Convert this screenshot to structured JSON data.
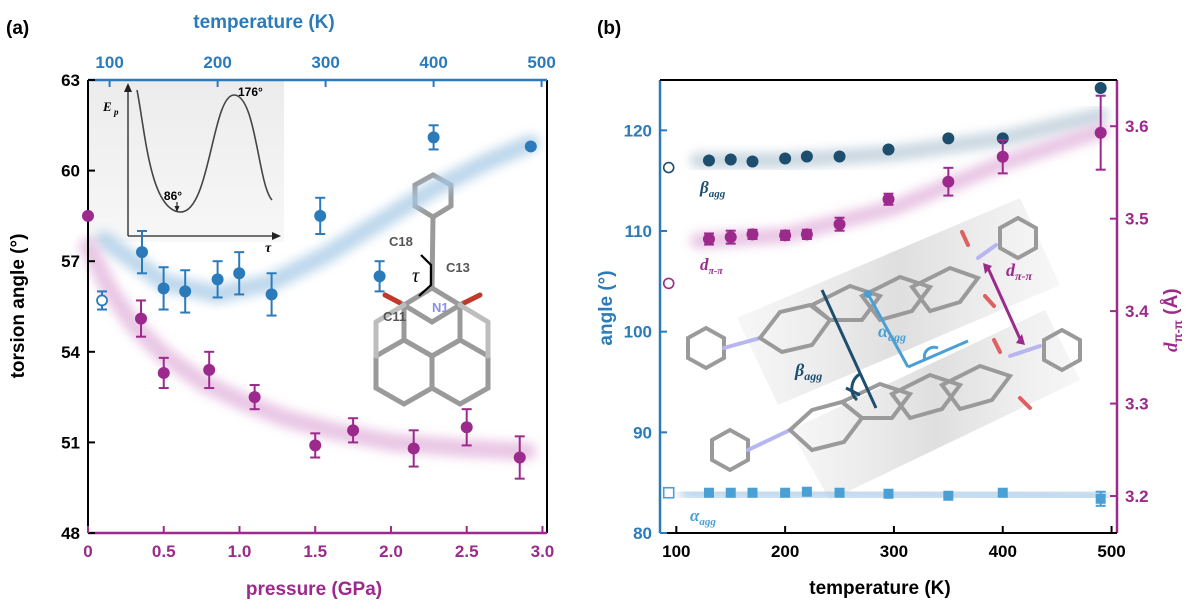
{
  "colors": {
    "blue": "#2b7bba",
    "magenta": "#9c2a8c",
    "navy": "#1d4e6e",
    "sky": "#4a9fd5"
  },
  "chart_data": [
    {
      "panel_label": "(a)",
      "type": "scatter",
      "xlabel_bottom": "pressure (GPa)",
      "xlabel_top": "temperature (K)",
      "ylabel": "torsion angle (°)",
      "xlim_bottom": [
        0,
        3.0
      ],
      "xlim_top": [
        80,
        505
      ],
      "ylim": [
        48,
        63
      ],
      "xticks_bottom": [
        "0",
        "0.5",
        "1.0",
        "1.5",
        "2.0",
        "2.5",
        "3.0"
      ],
      "xticks_top": [
        "100",
        "200",
        "300",
        "400",
        "500"
      ],
      "yticks": [
        "48",
        "51",
        "54",
        "57",
        "60",
        "63"
      ],
      "series": [
        {
          "axis": "top-temperature",
          "color": "#2b7bba",
          "marker": "circle",
          "points": [
            {
              "x": 130,
              "y": 57.3,
              "err": 0.7
            },
            {
              "x": 150,
              "y": 56.1,
              "err": 0.7
            },
            {
              "x": 170,
              "y": 56.0,
              "err": 0.7
            },
            {
              "x": 200,
              "y": 56.4,
              "err": 0.6
            },
            {
              "x": 220,
              "y": 56.6,
              "err": 0.7
            },
            {
              "x": 250,
              "y": 55.9,
              "err": 0.7
            },
            {
              "x": 295,
              "y": 58.5,
              "err": 0.6
            },
            {
              "x": 350,
              "y": 56.5,
              "err": 0.5
            },
            {
              "x": 400,
              "y": 61.1,
              "err": 0.4
            },
            {
              "x": 490,
              "y": 60.8,
              "err": 0
            }
          ],
          "open_points": [
            {
              "x": 93,
              "y": 55.7,
              "err": 0.3
            }
          ],
          "trend": [
            [
              95,
              57.7
            ],
            [
              150,
              56.3
            ],
            [
              200,
              55.9
            ],
            [
              250,
              56.3
            ],
            [
              300,
              57.2
            ],
            [
              350,
              58.3
            ],
            [
              400,
              59.4
            ],
            [
              450,
              60.3
            ],
            [
              490,
              60.9
            ]
          ]
        },
        {
          "axis": "bottom-pressure",
          "color": "#9c2a8c",
          "marker": "circle",
          "points": [
            {
              "x": 0.0,
              "y": 58.5,
              "err": 0
            },
            {
              "x": 0.35,
              "y": 55.1,
              "err": 0.6
            },
            {
              "x": 0.5,
              "y": 53.3,
              "err": 0.5
            },
            {
              "x": 0.8,
              "y": 53.4,
              "err": 0.6
            },
            {
              "x": 1.1,
              "y": 52.5,
              "err": 0.4
            },
            {
              "x": 1.5,
              "y": 50.9,
              "err": 0.4
            },
            {
              "x": 1.75,
              "y": 51.4,
              "err": 0.4
            },
            {
              "x": 2.15,
              "y": 50.8,
              "err": 0.6
            },
            {
              "x": 2.5,
              "y": 51.5,
              "err": 0.6
            },
            {
              "x": 2.85,
              "y": 50.5,
              "err": 0.7
            }
          ],
          "trend": [
            [
              0,
              57.5
            ],
            [
              0.15,
              56.0
            ],
            [
              0.3,
              54.9
            ],
            [
              0.5,
              53.9
            ],
            [
              0.75,
              53.0
            ],
            [
              1.0,
              52.4
            ],
            [
              1.3,
              51.8
            ],
            [
              1.6,
              51.4
            ],
            [
              2.0,
              51.0
            ],
            [
              2.5,
              50.8
            ],
            [
              2.9,
              50.7
            ]
          ]
        }
      ],
      "inset": {
        "ylabel": "E",
        "ylabel_sub": "p",
        "xlabel": "τ",
        "min_label": "86°",
        "max_label": "176°"
      },
      "molecule_labels": [
        "C18",
        "C13",
        "C11",
        "N1",
        "τ"
      ]
    },
    {
      "panel_label": "(b)",
      "type": "scatter",
      "xlabel": "temperature (K)",
      "ylabel_left": "angle (°)",
      "ylabel_right": "d",
      "ylabel_right_sub": "π-π",
      "ylabel_right_unit": " (Å)",
      "xlim": [
        85,
        505
      ],
      "ylim_left": [
        80,
        125
      ],
      "ylim_right": [
        3.16,
        3.65
      ],
      "xticks": [
        "100",
        "200",
        "300",
        "400",
        "500"
      ],
      "yticks_left": [
        "80",
        "90",
        "100",
        "110",
        "120"
      ],
      "yticks_right": [
        "3.2",
        "3.3",
        "3.4",
        "3.5",
        "3.6"
      ],
      "series": [
        {
          "name": "β",
          "name_sub": "agg",
          "axis": "left",
          "color": "#1d4e6e",
          "marker": "circle",
          "points": [
            {
              "x": 130,
              "y": 117.0
            },
            {
              "x": 150,
              "y": 117.1
            },
            {
              "x": 170,
              "y": 116.9
            },
            {
              "x": 200,
              "y": 117.2
            },
            {
              "x": 220,
              "y": 117.4
            },
            {
              "x": 250,
              "y": 117.4
            },
            {
              "x": 295,
              "y": 118.1
            },
            {
              "x": 350,
              "y": 119.2
            },
            {
              "x": 400,
              "y": 119.2
            },
            {
              "x": 490,
              "y": 124.2
            }
          ],
          "open_point": {
            "x": 93,
            "y": 116.3
          },
          "trend": [
            [
              120,
              117.0
            ],
            [
              200,
              117.0
            ],
            [
              300,
              117.7
            ],
            [
              400,
              119.2
            ],
            [
              490,
              121.5
            ]
          ]
        },
        {
          "name": "d",
          "name_sub": "π-π",
          "axis": "right",
          "color": "#9c2a8c",
          "marker": "circle",
          "points": [
            {
              "x": 130,
              "y": 3.478,
              "err": 0.006
            },
            {
              "x": 150,
              "y": 3.48,
              "err": 0.007
            },
            {
              "x": 170,
              "y": 3.483,
              "err": 0.005
            },
            {
              "x": 200,
              "y": 3.482,
              "err": 0.005
            },
            {
              "x": 220,
              "y": 3.483,
              "err": 0.005
            },
            {
              "x": 250,
              "y": 3.494,
              "err": 0.007
            },
            {
              "x": 295,
              "y": 3.521,
              "err": 0.006
            },
            {
              "x": 350,
              "y": 3.54,
              "err": 0.015
            },
            {
              "x": 400,
              "y": 3.567,
              "err": 0.018
            },
            {
              "x": 490,
              "y": 3.593,
              "err": 0.04
            }
          ],
          "open_point": {
            "x": 93,
            "y": 3.43
          },
          "trend": [
            [
              120,
              3.476
            ],
            [
              200,
              3.482
            ],
            [
              300,
              3.512
            ],
            [
              400,
              3.56
            ],
            [
              490,
              3.595
            ]
          ]
        },
        {
          "name": "α",
          "name_sub": "agg",
          "axis": "left",
          "color": "#4a9fd5",
          "marker": "square",
          "points": [
            {
              "x": 130,
              "y": 84.0
            },
            {
              "x": 150,
              "y": 84.0
            },
            {
              "x": 170,
              "y": 84.0
            },
            {
              "x": 200,
              "y": 84.0
            },
            {
              "x": 220,
              "y": 84.1
            },
            {
              "x": 250,
              "y": 84.0
            },
            {
              "x": 295,
              "y": 83.9
            },
            {
              "x": 350,
              "y": 83.7
            },
            {
              "x": 400,
              "y": 84.0
            },
            {
              "x": 490,
              "y": 83.4,
              "err": 0.7
            }
          ],
          "open_point": {
            "x": 93,
            "y": 84.0
          },
          "trend": [
            [
              110,
              84.0
            ],
            [
              250,
              84.0
            ],
            [
              350,
              83.9
            ],
            [
              490,
              83.6
            ]
          ]
        }
      ],
      "annotations": [
        {
          "text": "α",
          "sub": "agg"
        },
        {
          "text": "β",
          "sub": "agg"
        },
        {
          "text": "d",
          "sub": "π-π"
        }
      ]
    }
  ]
}
